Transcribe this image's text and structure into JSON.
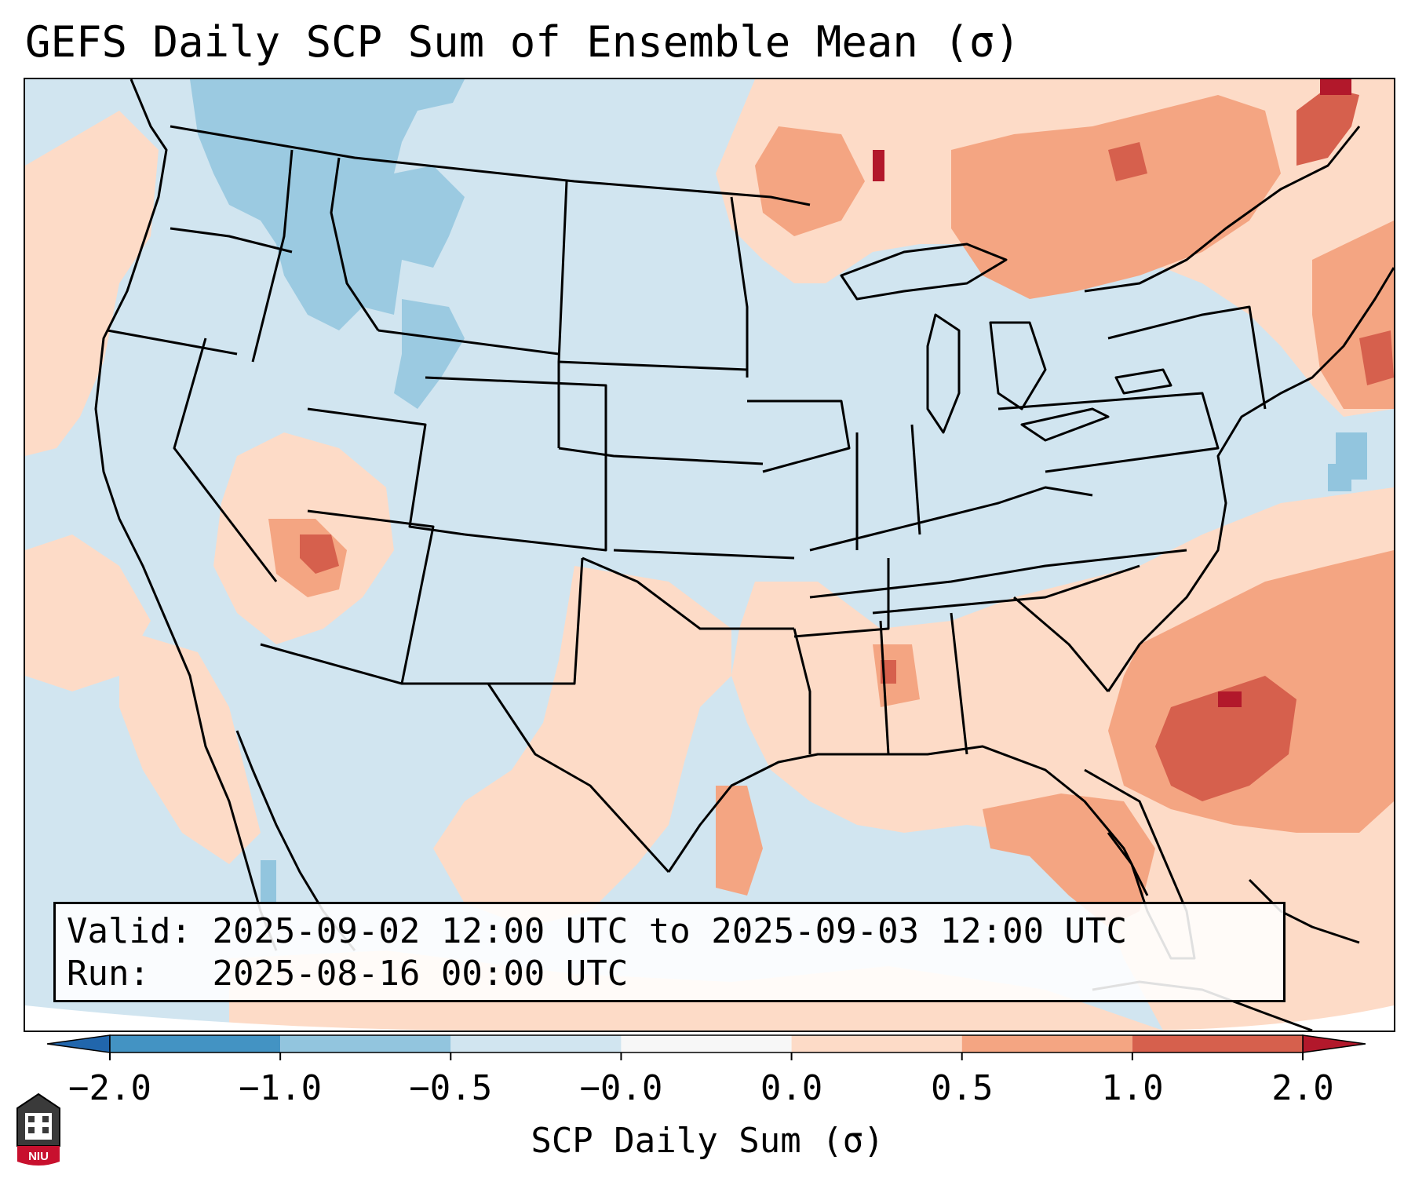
{
  "title": "GEFS Daily SCP Sum of Ensemble Mean (σ)",
  "info_box": {
    "valid_label": "Valid:",
    "valid_value": "2025-09-02 12:00 UTC to 2025-09-03 12:00 UTC",
    "run_label": "Run:",
    "run_value": "2025-08-16 00:00 UTC"
  },
  "colorbar": {
    "label": "SCP Daily Sum (σ)",
    "ticks": [
      "−2.0",
      "−1.0",
      "−0.5",
      "−0.0",
      "0.0",
      "0.5",
      "1.0",
      "2.0"
    ],
    "bins": [
      {
        "range": "< -2.0",
        "color": "#2166ac"
      },
      {
        "range": "-2.0 to -1.0",
        "color": "#4393c3"
      },
      {
        "range": "-1.0 to -0.5",
        "color": "#92c5de"
      },
      {
        "range": "-0.5 to -0.0",
        "color": "#d1e5f0"
      },
      {
        "range": "-0.0 to 0.0",
        "color": "#f7f7f7"
      },
      {
        "range": "0.0 to 0.5",
        "color": "#fddbc7"
      },
      {
        "range": "0.5 to 1.0",
        "color": "#f4a582"
      },
      {
        "range": "1.0 to 2.0",
        "color": "#d6604d"
      },
      {
        "range": "> 2.0",
        "color": "#b2182b"
      }
    ]
  },
  "map": {
    "region": "Contiguous United States",
    "background_color": "#d1e5f0",
    "anomaly_regions": [
      {
        "name": "Pacific Northwest coast",
        "level": "0.0 to 0.5"
      },
      {
        "name": "Northern Rockies / Montana",
        "level": "-1.0 to -0.5"
      },
      {
        "name": "Wyoming",
        "level": "-1.0 to -0.5"
      },
      {
        "name": "Four Corners / Arizona",
        "level": "0.5 to 2.0"
      },
      {
        "name": "Upper Midwest / Great Lakes",
        "level": "0.0 to 1.0"
      },
      {
        "name": "Ontario / Quebec",
        "level": "0.5 to 2.0"
      },
      {
        "name": "New England",
        "level": "0.5 to 2.0"
      },
      {
        "name": "Western Atlantic",
        "level": "0.5 to 2.0"
      },
      {
        "name": "Southeast / Florida",
        "level": "0.0 to 1.0"
      },
      {
        "name": "Texas / Southern Plains",
        "level": "0.0 to 0.5"
      }
    ]
  },
  "logo_text": "NIU"
}
